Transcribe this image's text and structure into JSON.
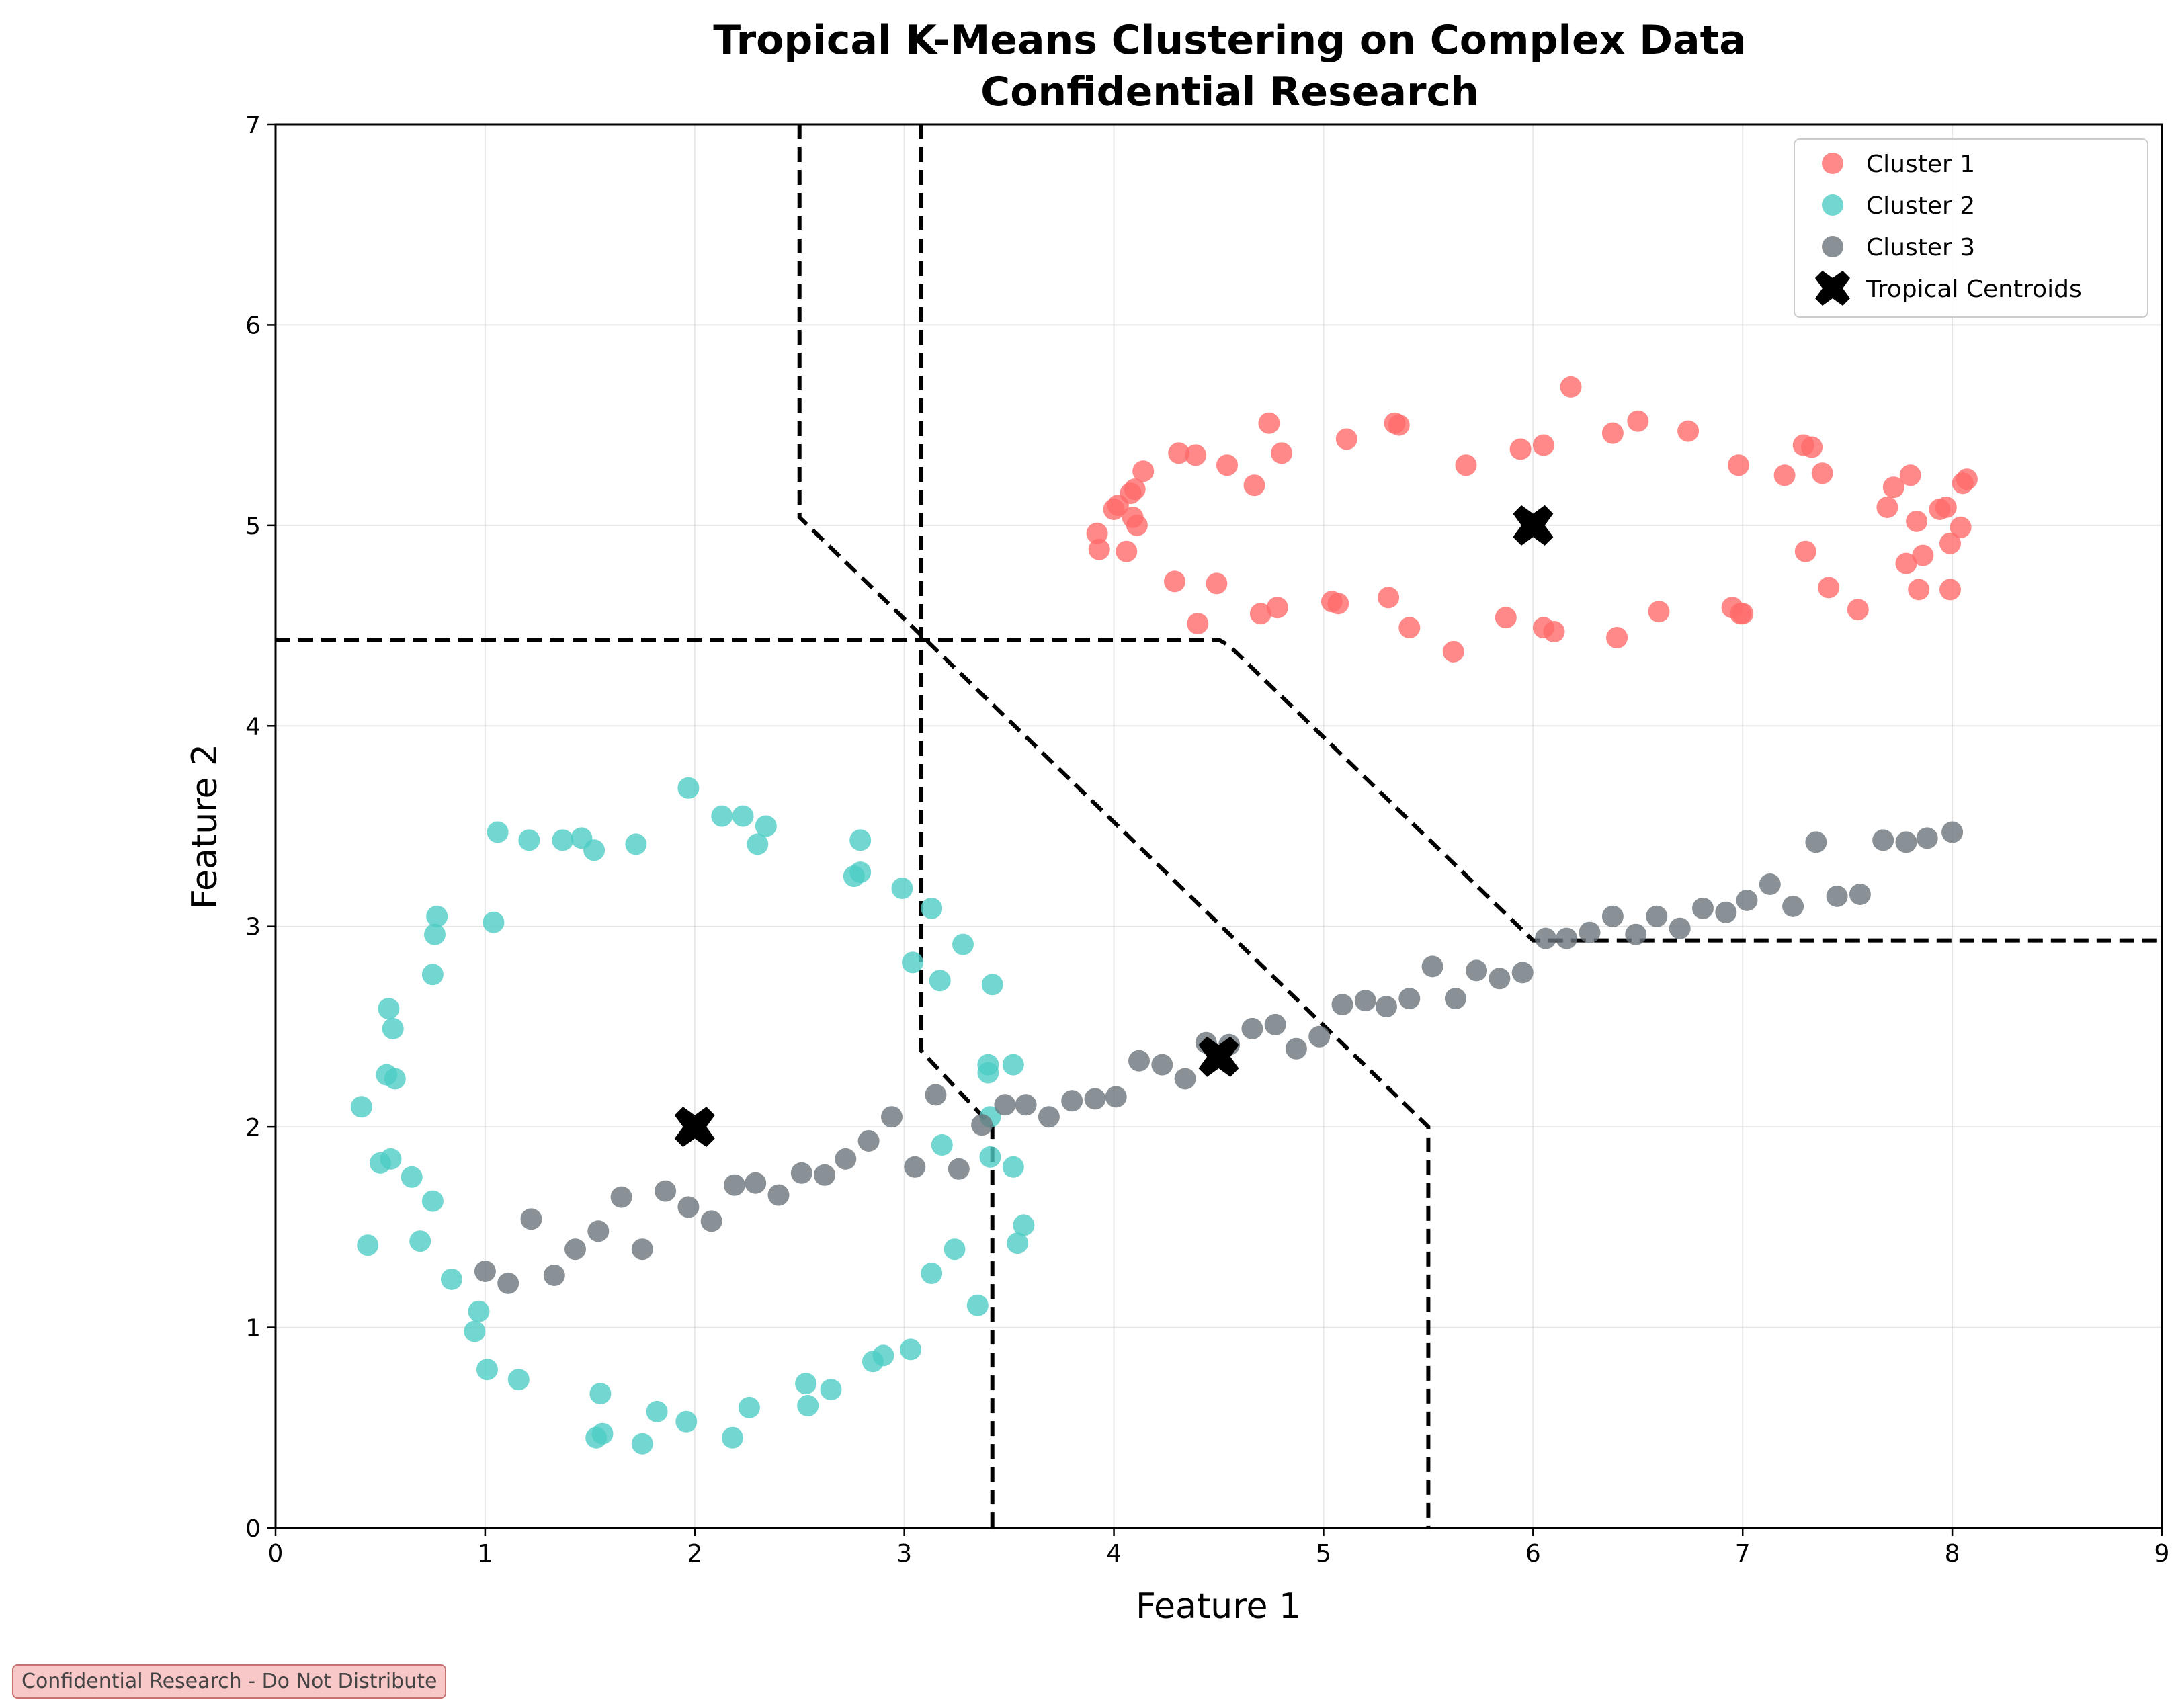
{
  "chart_data": {
    "type": "scatter",
    "title_lines": [
      "Tropical K-Means Clustering on Complex Data",
      "Confidential Research"
    ],
    "xlabel": "Feature 1",
    "ylabel": "Feature 2",
    "xlim": [
      0,
      9
    ],
    "ylim": [
      0,
      7
    ],
    "xticks": [
      "0",
      "1",
      "2",
      "3",
      "4",
      "5",
      "6",
      "7",
      "8",
      "9"
    ],
    "yticks": [
      "0",
      "1",
      "2",
      "3",
      "4",
      "5",
      "6",
      "7"
    ],
    "grid": true,
    "legend_position": "top-right",
    "series": [
      {
        "name": "Cluster 1",
        "color": "#ff6b6b",
        "points": [
          [
            3.92,
            4.96
          ],
          [
            3.93,
            4.88
          ],
          [
            4.0,
            5.08
          ],
          [
            4.02,
            5.1
          ],
          [
            4.06,
            4.87
          ],
          [
            4.08,
            5.16
          ],
          [
            4.09,
            5.04
          ],
          [
            4.1,
            5.18
          ],
          [
            4.11,
            5.0
          ],
          [
            4.14,
            5.27
          ],
          [
            4.29,
            4.72
          ],
          [
            4.31,
            5.36
          ],
          [
            4.39,
            5.35
          ],
          [
            4.4,
            4.51
          ],
          [
            4.49,
            4.71
          ],
          [
            4.54,
            5.3
          ],
          [
            4.67,
            5.2
          ],
          [
            4.7,
            4.56
          ],
          [
            4.74,
            5.51
          ],
          [
            4.78,
            4.59
          ],
          [
            4.8,
            5.36
          ],
          [
            5.04,
            4.62
          ],
          [
            5.07,
            4.61
          ],
          [
            5.11,
            5.43
          ],
          [
            5.31,
            4.64
          ],
          [
            5.34,
            5.51
          ],
          [
            5.36,
            5.5
          ],
          [
            5.41,
            4.49
          ],
          [
            5.62,
            4.37
          ],
          [
            5.68,
            5.3
          ],
          [
            5.87,
            4.54
          ],
          [
            5.94,
            5.38
          ],
          [
            6.05,
            4.49
          ],
          [
            6.05,
            5.4
          ],
          [
            6.1,
            4.47
          ],
          [
            6.18,
            5.69
          ],
          [
            6.38,
            5.46
          ],
          [
            6.4,
            4.44
          ],
          [
            6.5,
            5.52
          ],
          [
            6.6,
            4.57
          ],
          [
            6.74,
            5.47
          ],
          [
            6.95,
            4.59
          ],
          [
            6.98,
            5.3
          ],
          [
            6.99,
            4.56
          ],
          [
            7.0,
            4.56
          ],
          [
            7.2,
            5.25
          ],
          [
            7.29,
            5.4
          ],
          [
            7.3,
            4.87
          ],
          [
            7.33,
            5.39
          ],
          [
            7.38,
            5.26
          ],
          [
            7.41,
            4.69
          ],
          [
            7.55,
            4.58
          ],
          [
            7.69,
            5.09
          ],
          [
            7.72,
            5.19
          ],
          [
            7.78,
            4.81
          ],
          [
            7.8,
            5.25
          ],
          [
            7.83,
            5.02
          ],
          [
            7.84,
            4.68
          ],
          [
            7.86,
            4.85
          ],
          [
            7.94,
            5.08
          ],
          [
            7.97,
            5.09
          ],
          [
            7.99,
            4.91
          ],
          [
            7.99,
            4.68
          ],
          [
            8.04,
            4.99
          ],
          [
            8.05,
            5.21
          ],
          [
            8.07,
            5.23
          ]
        ]
      },
      {
        "name": "Cluster 2",
        "color": "#4ecdc4",
        "points": [
          [
            0.41,
            2.1
          ],
          [
            0.44,
            1.41
          ],
          [
            0.5,
            1.82
          ],
          [
            0.53,
            2.26
          ],
          [
            0.54,
            2.59
          ],
          [
            0.55,
            1.84
          ],
          [
            0.56,
            2.49
          ],
          [
            0.57,
            2.24
          ],
          [
            0.65,
            1.75
          ],
          [
            0.69,
            1.43
          ],
          [
            0.75,
            2.76
          ],
          [
            0.75,
            1.63
          ],
          [
            0.76,
            2.96
          ],
          [
            0.77,
            3.05
          ],
          [
            0.84,
            1.24
          ],
          [
            0.95,
            0.98
          ],
          [
            0.97,
            1.08
          ],
          [
            1.01,
            0.79
          ],
          [
            1.04,
            3.02
          ],
          [
            1.06,
            3.47
          ],
          [
            1.16,
            0.74
          ],
          [
            1.21,
            3.43
          ],
          [
            1.37,
            3.43
          ],
          [
            1.46,
            3.44
          ],
          [
            1.52,
            3.38
          ],
          [
            1.53,
            0.45
          ],
          [
            1.55,
            0.67
          ],
          [
            1.56,
            0.47
          ],
          [
            1.72,
            3.41
          ],
          [
            1.75,
            0.42
          ],
          [
            1.82,
            0.58
          ],
          [
            1.96,
            0.53
          ],
          [
            1.97,
            3.69
          ],
          [
            2.13,
            3.55
          ],
          [
            2.18,
            0.45
          ],
          [
            2.23,
            3.55
          ],
          [
            2.26,
            0.6
          ],
          [
            2.3,
            3.41
          ],
          [
            2.34,
            3.5
          ],
          [
            2.53,
            0.72
          ],
          [
            2.54,
            0.61
          ],
          [
            2.65,
            0.69
          ],
          [
            2.76,
            3.25
          ],
          [
            2.79,
            3.43
          ],
          [
            2.79,
            3.27
          ],
          [
            2.85,
            0.83
          ],
          [
            2.9,
            0.86
          ],
          [
            2.99,
            3.19
          ],
          [
            3.03,
            0.89
          ],
          [
            3.04,
            2.82
          ],
          [
            3.13,
            3.09
          ],
          [
            3.13,
            1.27
          ],
          [
            3.17,
            2.73
          ],
          [
            3.18,
            1.91
          ],
          [
            3.24,
            1.39
          ],
          [
            3.28,
            2.91
          ],
          [
            3.35,
            1.11
          ],
          [
            3.4,
            2.27
          ],
          [
            3.4,
            2.31
          ],
          [
            3.41,
            2.05
          ],
          [
            3.41,
            1.85
          ],
          [
            3.42,
            2.71
          ],
          [
            3.52,
            2.31
          ],
          [
            3.52,
            1.8
          ],
          [
            3.54,
            1.42
          ],
          [
            3.57,
            1.51
          ]
        ]
      },
      {
        "name": "Cluster 3",
        "color": "#6c757d",
        "points": [
          [
            1.0,
            1.28
          ],
          [
            1.11,
            1.22
          ],
          [
            1.22,
            1.54
          ],
          [
            1.33,
            1.26
          ],
          [
            1.43,
            1.39
          ],
          [
            1.54,
            1.48
          ],
          [
            1.65,
            1.65
          ],
          [
            1.75,
            1.39
          ],
          [
            1.86,
            1.68
          ],
          [
            1.97,
            1.6
          ],
          [
            2.08,
            1.53
          ],
          [
            2.19,
            1.71
          ],
          [
            2.29,
            1.72
          ],
          [
            2.4,
            1.66
          ],
          [
            2.51,
            1.77
          ],
          [
            2.62,
            1.76
          ],
          [
            2.72,
            1.84
          ],
          [
            2.83,
            1.93
          ],
          [
            2.94,
            2.05
          ],
          [
            3.05,
            1.8
          ],
          [
            3.15,
            2.16
          ],
          [
            3.26,
            1.79
          ],
          [
            3.37,
            2.01
          ],
          [
            3.48,
            2.11
          ],
          [
            3.58,
            2.11
          ],
          [
            3.69,
            2.05
          ],
          [
            3.8,
            2.13
          ],
          [
            3.91,
            2.14
          ],
          [
            4.01,
            2.15
          ],
          [
            4.12,
            2.33
          ],
          [
            4.23,
            2.31
          ],
          [
            4.34,
            2.24
          ],
          [
            4.44,
            2.42
          ],
          [
            4.55,
            2.41
          ],
          [
            4.66,
            2.49
          ],
          [
            4.77,
            2.51
          ],
          [
            4.87,
            2.39
          ],
          [
            4.98,
            2.45
          ],
          [
            5.09,
            2.61
          ],
          [
            5.2,
            2.63
          ],
          [
            5.3,
            2.6
          ],
          [
            5.41,
            2.64
          ],
          [
            5.52,
            2.8
          ],
          [
            5.63,
            2.64
          ],
          [
            5.73,
            2.78
          ],
          [
            5.84,
            2.74
          ],
          [
            5.95,
            2.77
          ],
          [
            6.06,
            2.94
          ],
          [
            6.16,
            2.94
          ],
          [
            6.27,
            2.97
          ],
          [
            6.38,
            3.05
          ],
          [
            6.49,
            2.96
          ],
          [
            6.59,
            3.05
          ],
          [
            6.7,
            2.99
          ],
          [
            6.81,
            3.09
          ],
          [
            6.92,
            3.07
          ],
          [
            7.02,
            3.13
          ],
          [
            7.13,
            3.21
          ],
          [
            7.24,
            3.1
          ],
          [
            7.35,
            3.42
          ],
          [
            7.45,
            3.15
          ],
          [
            7.56,
            3.16
          ],
          [
            7.67,
            3.43
          ],
          [
            7.78,
            3.42
          ],
          [
            7.88,
            3.44
          ],
          [
            8.0,
            3.47
          ]
        ]
      }
    ],
    "centroids": {
      "name": "Tropical Centroids",
      "color": "#000000",
      "points": [
        [
          6.0,
          5.0
        ],
        [
          2.0,
          2.0
        ],
        [
          4.5,
          2.35
        ]
      ]
    },
    "boundaries": [
      [
        [
          0,
          4.43
        ],
        [
          4.5,
          4.43
        ],
        [
          4.55,
          4.4
        ],
        [
          6.0,
          2.93
        ],
        [
          9,
          2.93
        ]
      ],
      [
        [
          3.08,
          7
        ],
        [
          3.08,
          2.38
        ],
        [
          3.42,
          2.0
        ],
        [
          3.42,
          0
        ]
      ],
      [
        [
          2.5,
          7
        ],
        [
          2.5,
          5.04
        ],
        [
          5.5,
          2.0
        ],
        [
          5.5,
          0
        ]
      ]
    ]
  },
  "footer": {
    "note": "Confidential Research - Do Not Distribute"
  }
}
